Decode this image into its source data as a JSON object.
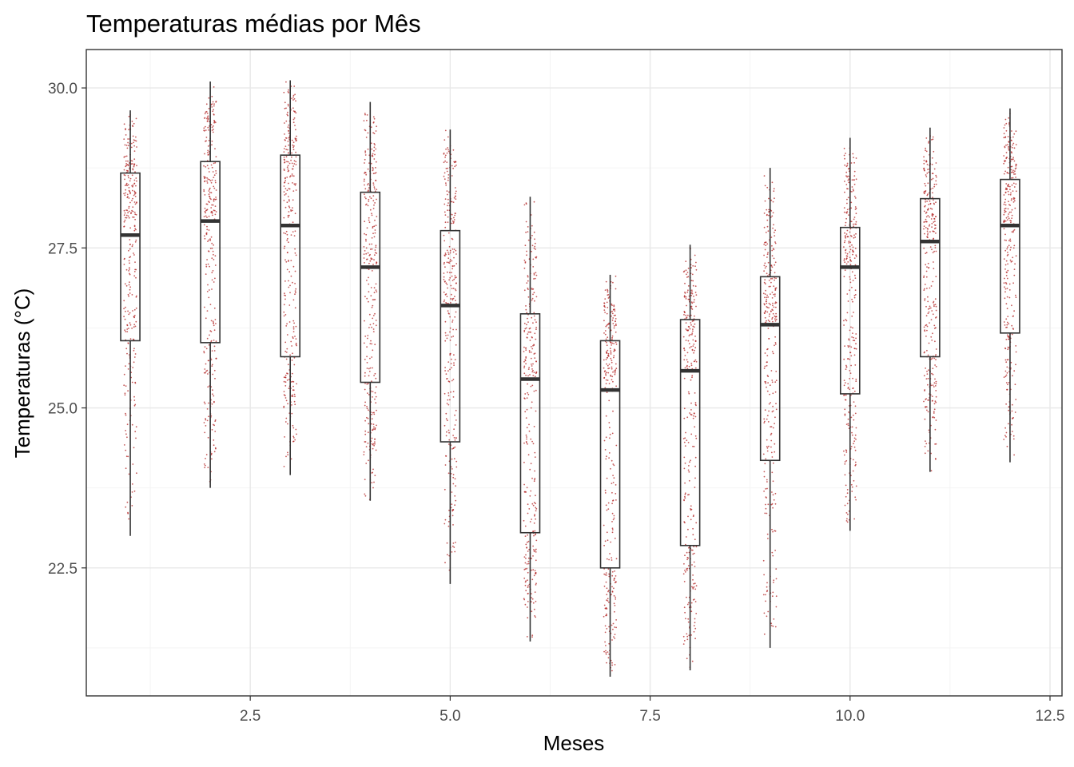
{
  "chart_data": {
    "type": "boxplot",
    "title": "Temperaturas médias por Mês",
    "xlabel": "Meses",
    "ylabel": "Temperaturas (°C)",
    "xlim": [
      0.45,
      12.65
    ],
    "ylim": [
      20.5,
      30.6
    ],
    "x_ticks": [
      2.5,
      5.0,
      7.5,
      10.0,
      12.5
    ],
    "x_tick_labels": [
      "2.5",
      "5.0",
      "7.5",
      "10.0",
      "12.5"
    ],
    "y_ticks": [
      22.5,
      25.0,
      27.5,
      30.0
    ],
    "y_tick_labels": [
      "22.5",
      "25.0",
      "27.5",
      "30.0"
    ],
    "grid": true,
    "point_color": "#b22222",
    "box_stroke": "#333333",
    "series": [
      {
        "month": 1,
        "min": 23.0,
        "q1": 26.05,
        "median": 27.7,
        "q3": 28.67,
        "max": 29.65
      },
      {
        "month": 2,
        "min": 23.75,
        "q1": 26.02,
        "median": 27.92,
        "q3": 28.85,
        "max": 30.1
      },
      {
        "month": 3,
        "min": 23.95,
        "q1": 25.8,
        "median": 27.85,
        "q3": 28.95,
        "max": 30.12
      },
      {
        "month": 4,
        "min": 23.55,
        "q1": 25.4,
        "median": 27.2,
        "q3": 28.37,
        "max": 29.78
      },
      {
        "month": 5,
        "min": 22.25,
        "q1": 24.47,
        "median": 26.6,
        "q3": 27.77,
        "max": 29.35
      },
      {
        "month": 6,
        "min": 21.35,
        "q1": 23.05,
        "median": 25.45,
        "q3": 26.47,
        "max": 28.3
      },
      {
        "month": 7,
        "min": 20.8,
        "q1": 22.5,
        "median": 25.28,
        "q3": 26.05,
        "max": 27.08
      },
      {
        "month": 8,
        "min": 20.9,
        "q1": 22.85,
        "median": 25.58,
        "q3": 26.38,
        "max": 27.55
      },
      {
        "month": 9,
        "min": 21.25,
        "q1": 24.18,
        "median": 26.3,
        "q3": 27.05,
        "max": 28.75
      },
      {
        "month": 10,
        "min": 23.08,
        "q1": 25.22,
        "median": 27.2,
        "q3": 27.82,
        "max": 29.22
      },
      {
        "month": 11,
        "min": 24.0,
        "q1": 25.8,
        "median": 27.6,
        "q3": 28.27,
        "max": 29.38
      },
      {
        "month": 12,
        "min": 24.15,
        "q1": 26.17,
        "median": 27.85,
        "q3": 28.57,
        "max": 29.68
      }
    ]
  }
}
